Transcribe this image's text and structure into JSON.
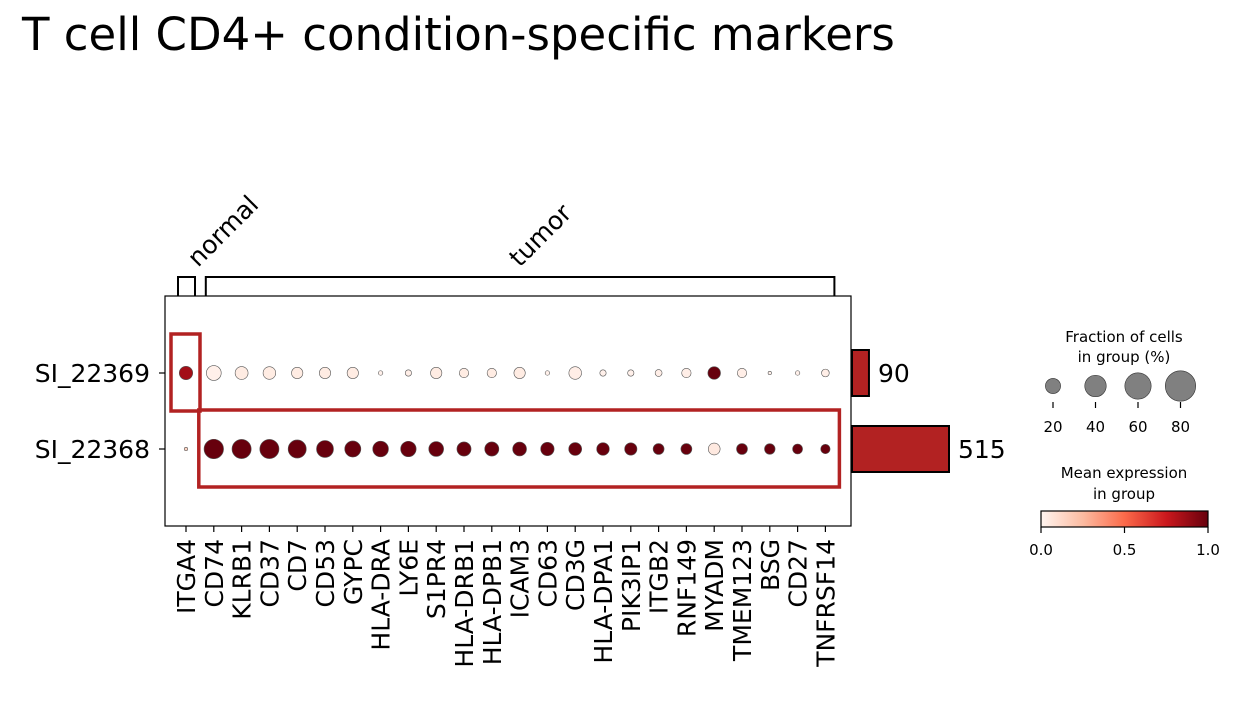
{
  "chart_data": {
    "type": "dotplot",
    "title": "T cell CD4+ condition-specific markers",
    "genes": [
      "ITGA4",
      "CD74",
      "KLRB1",
      "CD37",
      "CD7",
      "CD53",
      "GYPC",
      "HLA-DRA",
      "LY6E",
      "S1PR4",
      "HLA-DRB1",
      "HLA-DPB1",
      "ICAM3",
      "CD63",
      "CD3G",
      "HLA-DPA1",
      "PIK3IP1",
      "ITGB2",
      "RNF149",
      "MYADM",
      "TMEM123",
      "BSG",
      "CD27",
      "TNFRSF14"
    ],
    "groups": [
      "SI_22369",
      "SI_22368"
    ],
    "gene_groups": [
      {
        "label": "normal",
        "start": 0,
        "end": 0
      },
      {
        "label": "tumor",
        "start": 1,
        "end": 23
      }
    ],
    "fraction": [
      [
        45,
        55,
        42,
        40,
        32,
        32,
        32,
        5,
        10,
        32,
        22,
        22,
        32,
        5,
        40,
        10,
        10,
        12,
        22,
        40,
        22,
        3,
        5,
        15
      ],
      [
        3,
        95,
        92,
        92,
        82,
        72,
        65,
        62,
        60,
        55,
        50,
        50,
        48,
        45,
        42,
        40,
        38,
        30,
        30,
        35,
        30,
        28,
        25,
        22
      ]
    ],
    "expression": [
      [
        0.85,
        0.02,
        0.04,
        0.04,
        0.04,
        0.04,
        0.04,
        0.02,
        0.03,
        0.04,
        0.04,
        0.04,
        0.04,
        0.02,
        0.03,
        0.02,
        0.02,
        0.03,
        0.03,
        1.0,
        0.03,
        0.02,
        0.02,
        0.03
      ],
      [
        0.15,
        1.0,
        1.0,
        1.0,
        1.0,
        1.0,
        1.0,
        1.0,
        1.0,
        1.0,
        1.0,
        1.0,
        1.0,
        1.0,
        1.0,
        1.0,
        1.0,
        1.0,
        1.0,
        0.05,
        1.0,
        1.0,
        1.0,
        1.0
      ]
    ],
    "group_counts": [
      90,
      515
    ],
    "highlight_boxes": [
      {
        "group": "SI_22369",
        "start": 0,
        "end": 0
      },
      {
        "group": "SI_22368",
        "start": 1,
        "end": 23
      }
    ],
    "size_legend": {
      "title_line1": "Fraction of cells",
      "title_line2": "in group (%)",
      "values": [
        20,
        40,
        60,
        80
      ],
      "labels": [
        "20",
        "40",
        "60",
        "80"
      ]
    },
    "color_legend": {
      "title_line1": "Mean expression",
      "title_line2": "in group",
      "range": [
        0.0,
        1.0
      ],
      "ticks": [
        "0.0",
        "0.5",
        "1.0"
      ]
    }
  },
  "colors": {
    "highlight": "#b22222",
    "bar_fill": "#b22222",
    "cmap_low": "#fff5f0",
    "cmap_high": "#67000d",
    "legend_dot": "#808080"
  }
}
